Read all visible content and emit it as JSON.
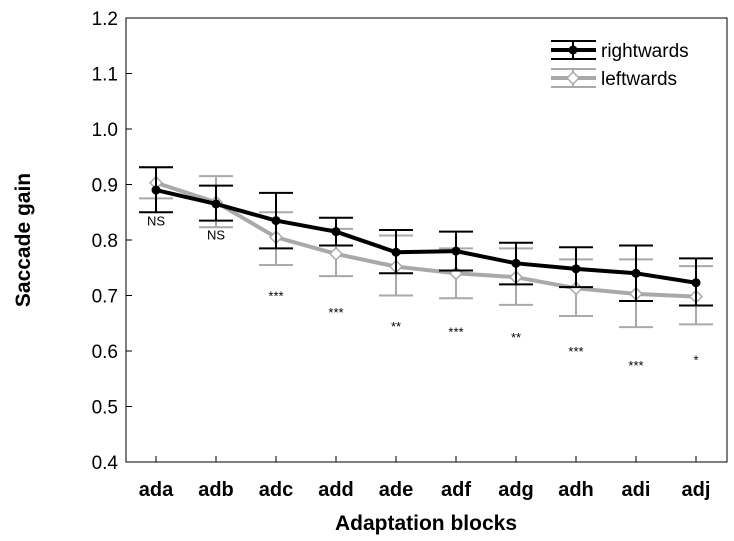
{
  "chart_data": {
    "type": "line",
    "title": "",
    "xlabel": "Adaptation blocks",
    "ylabel": "Saccade gain",
    "categories": [
      "ada",
      "adb",
      "adc",
      "add",
      "ade",
      "adf",
      "adg",
      "adh",
      "adi",
      "adj"
    ],
    "yticks": [
      "0.4",
      "0.5",
      "0.6",
      "0.7",
      "0.8",
      "0.9",
      "1.0",
      "1.1",
      "1.2"
    ],
    "ylim": [
      0.4,
      1.2
    ],
    "grid": false,
    "legend_position": "top-right",
    "series": [
      {
        "name": "rightwards",
        "color": "#000000",
        "marker": "filled-circle",
        "values": [
          0.89,
          0.865,
          0.835,
          0.815,
          0.778,
          0.78,
          0.758,
          0.748,
          0.74,
          0.723
        ],
        "err_low": [
          0.85,
          0.835,
          0.785,
          0.79,
          0.74,
          0.745,
          0.72,
          0.715,
          0.69,
          0.682
        ],
        "err_high": [
          0.931,
          0.898,
          0.885,
          0.84,
          0.818,
          0.815,
          0.795,
          0.787,
          0.79,
          0.767
        ]
      },
      {
        "name": "leftwards",
        "color": "#a9a9a9",
        "marker": "open-diamond",
        "values": [
          0.903,
          0.868,
          0.805,
          0.775,
          0.752,
          0.74,
          0.733,
          0.713,
          0.703,
          0.698
        ],
        "err_low": [
          0.875,
          0.823,
          0.755,
          0.735,
          0.7,
          0.695,
          0.683,
          0.663,
          0.643,
          0.648
        ],
        "err_high": [
          0.931,
          0.915,
          0.85,
          0.82,
          0.808,
          0.785,
          0.785,
          0.765,
          0.765,
          0.753
        ]
      }
    ],
    "annotations": [
      {
        "category": "ada",
        "text": "NS",
        "y": 0.835
      },
      {
        "category": "adb",
        "text": "NS",
        "y": 0.81
      },
      {
        "category": "adc",
        "text": "***",
        "y": 0.7
      },
      {
        "category": "add",
        "text": "***",
        "y": 0.67
      },
      {
        "category": "ade",
        "text": "**",
        "y": 0.645
      },
      {
        "category": "adf",
        "text": "***",
        "y": 0.635
      },
      {
        "category": "adg",
        "text": "**",
        "y": 0.625
      },
      {
        "category": "adh",
        "text": "***",
        "y": 0.6
      },
      {
        "category": "adi",
        "text": "***",
        "y": 0.575
      },
      {
        "category": "adj",
        "text": "*",
        "y": 0.585
      }
    ]
  }
}
